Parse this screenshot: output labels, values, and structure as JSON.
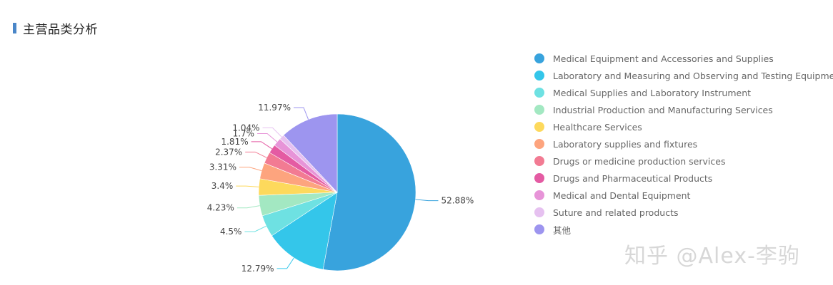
{
  "header": {
    "title": "主营品类分析"
  },
  "watermark": "知乎 @Alex-李驹",
  "chart_data": {
    "type": "pie",
    "title": "主营品类分析",
    "legend_position": "right",
    "series": [
      {
        "name": "Medical Equipment and Accessories and Supplies",
        "value": 52.88,
        "label": "52.88%",
        "color": "#38a3dd"
      },
      {
        "name": "Laboratory and Measuring and Observing and Testing Equipment",
        "value": 12.79,
        "label": "12.79%",
        "color": "#34c6ea"
      },
      {
        "name": "Medical Supplies and Laboratory Instrument",
        "value": 4.5,
        "label": "4.5%",
        "color": "#6ee1e2"
      },
      {
        "name": "Industrial Production and Manufacturing Services",
        "value": 4.23,
        "label": "4.23%",
        "color": "#a3e8c2"
      },
      {
        "name": "Healthcare Services",
        "value": 3.4,
        "label": "3.4%",
        "color": "#fdd95c"
      },
      {
        "name": "Laboratory supplies and fixtures",
        "value": 3.31,
        "label": "3.31%",
        "color": "#fda47e"
      },
      {
        "name": "Drugs or medicine production services",
        "value": 2.37,
        "label": "2.37%",
        "color": "#f27b93"
      },
      {
        "name": "Drugs and Pharmaceutical Products",
        "value": 1.81,
        "label": "1.81%",
        "color": "#e45ba3"
      },
      {
        "name": "Medical and Dental Equipment",
        "value": 1.7,
        "label": "1.7%",
        "color": "#e794d8"
      },
      {
        "name": "Suture and related products",
        "value": 1.04,
        "label": "1.04%",
        "color": "#e6c1f0"
      },
      {
        "name": "其他",
        "value": 11.97,
        "label": "11.97%",
        "color": "#9d95ef"
      }
    ]
  }
}
